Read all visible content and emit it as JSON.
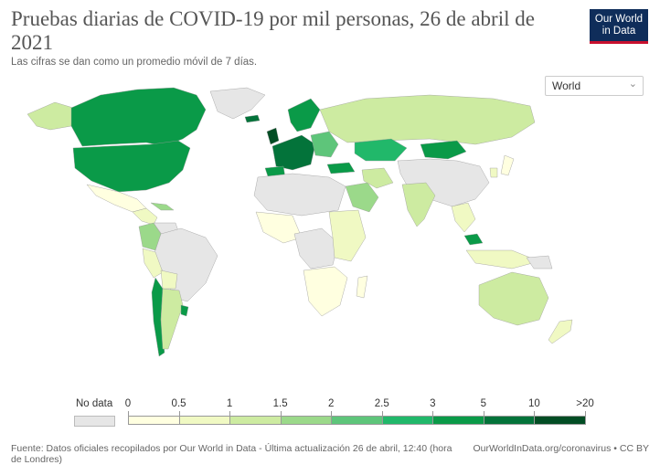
{
  "title": "Pruebas diarias de COVID-19 por mil personas, 26 de abril de 2021",
  "subtitle": "Las cifras se dan como un promedio móvil de 7 días.",
  "logo": {
    "line1": "Our World",
    "line2": "in Data"
  },
  "region_select": {
    "value": "World",
    "icon": "chevron-down-icon"
  },
  "legend": {
    "no_data_label": "No data",
    "no_data_color": "#e6e6e6",
    "bins": [
      {
        "from": "0",
        "to": "0.5",
        "color": "#ffffe0"
      },
      {
        "from": "0.5",
        "to": "1",
        "color": "#f0f9c3"
      },
      {
        "from": "1",
        "to": "1.5",
        "color": "#cdeba1"
      },
      {
        "from": "1.5",
        "to": "2",
        "color": "#9bd98a"
      },
      {
        "from": "2",
        "to": "2.5",
        "color": "#5ec57a"
      },
      {
        "from": "2.5",
        "to": "3",
        "color": "#21b86a"
      },
      {
        "from": "3",
        "to": "5",
        "color": "#0a9a48"
      },
      {
        "from": "5",
        "to": "10",
        "color": "#03733a"
      },
      {
        "from": "10",
        "to": ">20",
        "color": "#024d24"
      }
    ],
    "tick_labels": [
      "0",
      "0.5",
      "1",
      "1.5",
      "2",
      "2.5",
      "3",
      "5",
      "10",
      ">20"
    ]
  },
  "footer": {
    "source": "Fuente: Datos oficiales recopilados por Our World in Data - Última actualización 26 de abril, 12:40 (hora de Londres)",
    "credit": "OurWorldInData.org/coronavirus • CC BY"
  },
  "colors": {
    "nodata": "#e6e6e6",
    "c0": "#ffffe0",
    "c1": "#f0f9c3",
    "c2": "#cdeba1",
    "c3": "#9bd98a",
    "c4": "#5ec57a",
    "c5": "#21b86a",
    "c6": "#0a9a48",
    "c7": "#03733a",
    "c8": "#024d24"
  }
}
